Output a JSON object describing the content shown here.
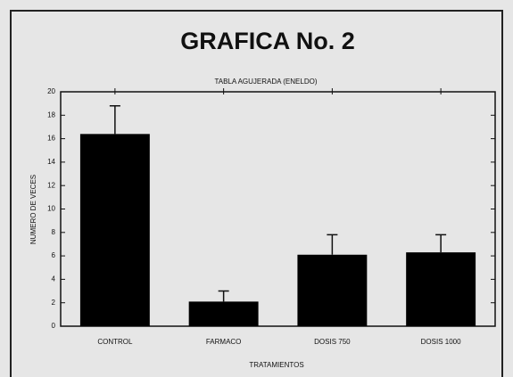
{
  "chart_data": {
    "type": "bar",
    "title": "GRAFICA No. 2",
    "subtitle": "TABLA AGUJERADA (ENELDO)",
    "y_label": "NUMERO DE VECES",
    "x_label": "TRATAMIENTOS",
    "categories": [
      "CONTROL",
      "FARMACO",
      "DOSIS 750",
      "DOSIS 1000"
    ],
    "values": [
      16.4,
      2.1,
      6.1,
      6.3
    ],
    "errors": [
      2.4,
      0.9,
      1.7,
      1.5
    ],
    "color": "#000000",
    "ylim": [
      0,
      20
    ],
    "yticks": [
      0,
      2,
      4,
      6,
      8,
      10,
      12,
      14,
      16,
      18,
      20
    ]
  }
}
